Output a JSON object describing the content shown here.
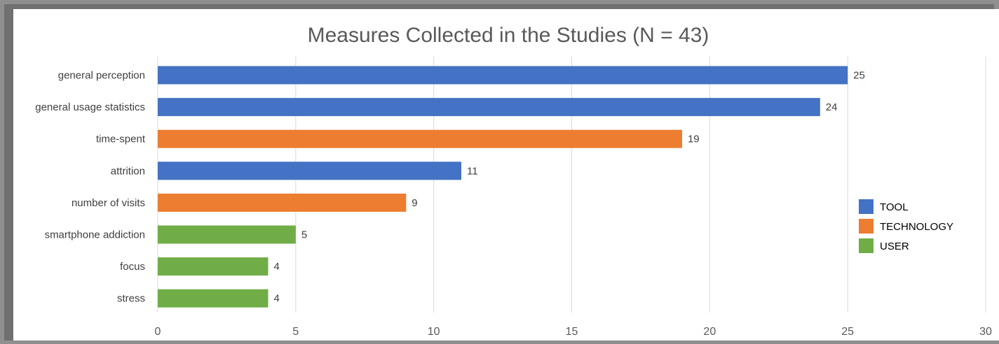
{
  "chart_data": {
    "type": "bar",
    "orientation": "horizontal",
    "title": "Measures Collected in the Studies (N = 43)",
    "xlabel": "",
    "ylabel": "",
    "categories": [
      "general perception",
      "general usage statistics",
      "time-spent",
      "attrition",
      "number of visits",
      "smartphone addiction",
      "focus",
      "stress"
    ],
    "values": [
      25,
      24,
      19,
      11,
      9,
      5,
      4,
      4
    ],
    "groups": [
      "TOOL",
      "TOOL",
      "TECHNOLOGY",
      "TOOL",
      "TECHNOLOGY",
      "USER",
      "USER",
      "USER"
    ],
    "data_labels": [
      "25",
      "24",
      "19",
      "11",
      "9",
      "5",
      "4",
      "4"
    ],
    "xlim": [
      0,
      30
    ],
    "xticks": [
      "0",
      "5",
      "10",
      "15",
      "20",
      "25",
      "30"
    ],
    "grid": "vertical",
    "legend": {
      "placement": "right",
      "entries": [
        {
          "name": "TOOL",
          "color": "#4472c4"
        },
        {
          "name": "TECHNOLOGY",
          "color": "#ed7d31"
        },
        {
          "name": "USER",
          "color": "#70ad47"
        }
      ]
    }
  }
}
